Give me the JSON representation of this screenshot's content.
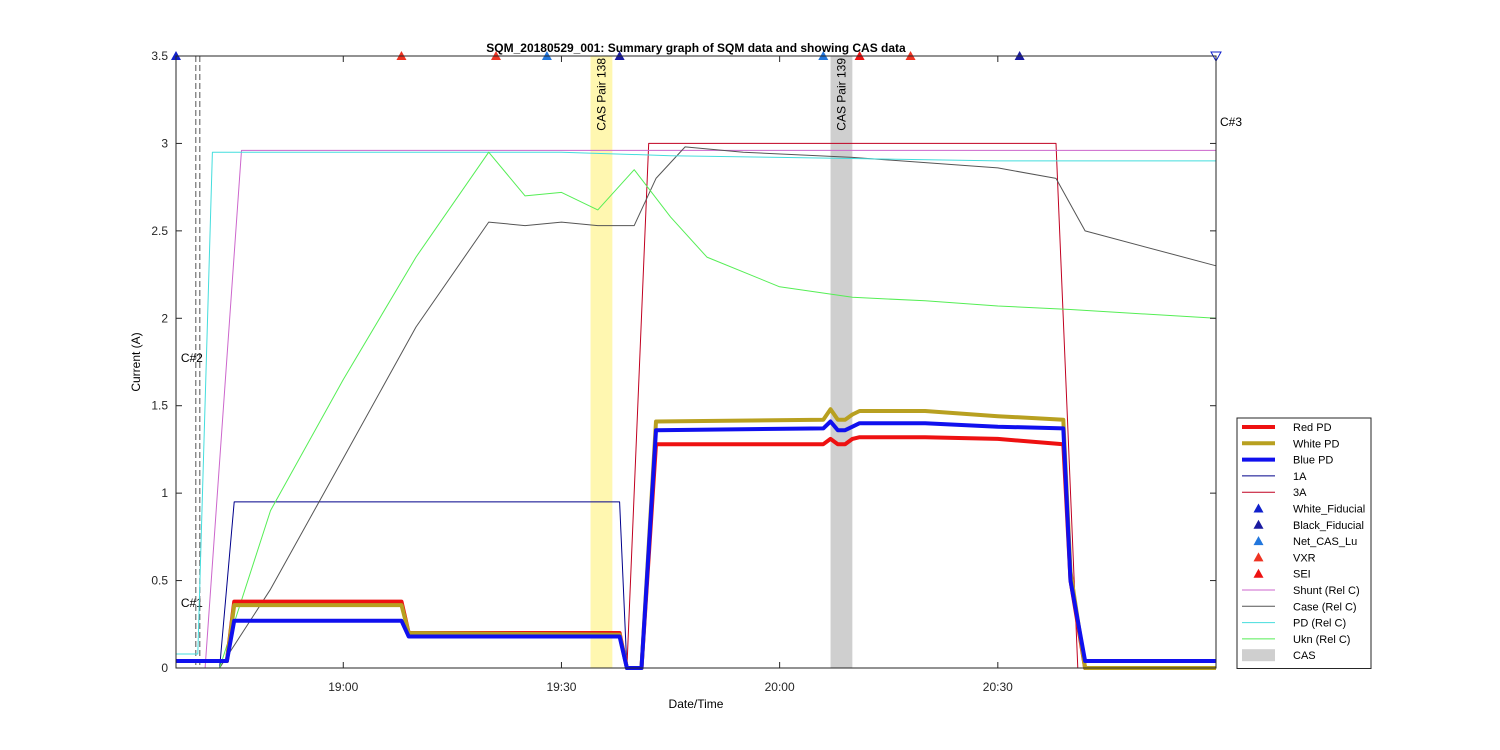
{
  "chart_data": {
    "type": "line",
    "title": "SQM_20180529_001: Summary graph of SQM data and showing CAS data",
    "xlabel": "Date/Time",
    "ylabel": "Current (A)",
    "xlim": [
      "18:37",
      "21:00"
    ],
    "ylim": [
      0,
      3.5
    ],
    "x_ticks": [
      "19:00",
      "19:30",
      "20:00",
      "20:30"
    ],
    "y_ticks": [
      "0",
      "0.5",
      "1",
      "1.5",
      "2",
      "2.5",
      "3",
      "3.5"
    ],
    "grid": false,
    "legend_position": "bottom-right",
    "cas_bands": [
      {
        "label": "CAS Pair 138",
        "start": "19:34",
        "end": "19:37",
        "color": "#fff7b0"
      },
      {
        "label": "CAS Pair 139",
        "start": "20:07",
        "end": "20:10",
        "color": "#cfcfcf"
      }
    ],
    "c_markers": [
      {
        "label": "C#1",
        "x": "18:40",
        "y": 0.35
      },
      {
        "label": "C#2",
        "x": "18:40",
        "y": 1.75
      },
      {
        "label": "C#3",
        "x": "21:00",
        "y": 3.1
      }
    ],
    "event_markers": [
      {
        "x": "18:37",
        "series": "White_Fiducial"
      },
      {
        "x": "19:08",
        "series": "VXR"
      },
      {
        "x": "19:21",
        "series": "VXR"
      },
      {
        "x": "19:28",
        "series": "Net_CAS_Lu"
      },
      {
        "x": "19:38",
        "series": "Black_Fiducial"
      },
      {
        "x": "20:06",
        "series": "Net_CAS_Lu"
      },
      {
        "x": "20:11",
        "series": "SEI"
      },
      {
        "x": "20:18",
        "series": "VXR"
      },
      {
        "x": "20:33",
        "series": "Black_Fiducial"
      },
      {
        "x": "21:00",
        "series": "White_Fiducial",
        "open_down": true
      }
    ],
    "series": [
      {
        "name": "Red PD",
        "color": "#ee1111",
        "width": 4,
        "x": [
          "18:37",
          "18:44",
          "18:45",
          "19:08",
          "19:09",
          "19:38",
          "19:39",
          "19:41",
          "19:43",
          "20:06",
          "20:07",
          "20:08",
          "20:09",
          "20:10",
          "20:11",
          "20:20",
          "20:30",
          "20:39",
          "20:40",
          "20:42",
          "21:00"
        ],
        "y": [
          0.04,
          0.04,
          0.38,
          0.38,
          0.2,
          0.2,
          0.0,
          0.0,
          1.28,
          1.28,
          1.31,
          1.28,
          1.28,
          1.31,
          1.32,
          1.32,
          1.31,
          1.28,
          0.5,
          0.0,
          0.0
        ]
      },
      {
        "name": "White PD",
        "color": "#b8a020",
        "width": 4,
        "x": [
          "18:37",
          "18:44",
          "18:45",
          "19:08",
          "19:09",
          "19:38",
          "19:39",
          "19:41",
          "19:43",
          "20:06",
          "20:07",
          "20:08",
          "20:09",
          "20:10",
          "20:11",
          "20:20",
          "20:30",
          "20:39",
          "20:40",
          "20:42",
          "21:00"
        ],
        "y": [
          0.04,
          0.04,
          0.36,
          0.36,
          0.2,
          0.19,
          0.0,
          0.0,
          1.41,
          1.42,
          1.48,
          1.42,
          1.42,
          1.45,
          1.47,
          1.47,
          1.44,
          1.42,
          0.55,
          0.0,
          0.0
        ]
      },
      {
        "name": "Blue PD",
        "color": "#1010ee",
        "width": 4,
        "x": [
          "18:37",
          "18:44",
          "18:45",
          "19:08",
          "19:09",
          "19:38",
          "19:39",
          "19:41",
          "19:43",
          "20:06",
          "20:07",
          "20:08",
          "20:09",
          "20:10",
          "20:11",
          "20:20",
          "20:30",
          "20:39",
          "20:40",
          "20:42",
          "21:00"
        ],
        "y": [
          0.04,
          0.04,
          0.27,
          0.27,
          0.18,
          0.18,
          0.0,
          0.0,
          1.36,
          1.37,
          1.41,
          1.36,
          1.36,
          1.38,
          1.4,
          1.4,
          1.38,
          1.37,
          0.5,
          0.04,
          0.04
        ]
      },
      {
        "name": "1A",
        "color": "#00008b",
        "width": 1,
        "x": [
          "18:37",
          "18:43",
          "18:45",
          "19:38",
          "19:39",
          "21:00"
        ],
        "y": [
          0.0,
          0.0,
          0.95,
          0.95,
          0.0,
          0.0
        ]
      },
      {
        "name": "3A",
        "color": "#c00020",
        "width": 1,
        "x": [
          "18:37",
          "19:39",
          "19:42",
          "20:38",
          "20:41",
          "21:00"
        ],
        "y": [
          0.0,
          0.0,
          3.0,
          3.0,
          0.0,
          0.0
        ]
      },
      {
        "name": "Shunt (Rel C)",
        "color": "#cc66cc",
        "width": 1,
        "x": [
          "18:37",
          "18:41",
          "18:46",
          "19:30",
          "20:00",
          "20:30",
          "21:00"
        ],
        "y": [
          0.0,
          0.0,
          2.96,
          2.96,
          2.96,
          2.96,
          2.96
        ]
      },
      {
        "name": "Case (Rel C)",
        "color": "#555555",
        "width": 1,
        "x": [
          "18:37",
          "18:43",
          "18:50",
          "19:00",
          "19:10",
          "19:20",
          "19:25",
          "19:30",
          "19:35",
          "19:40",
          "19:43",
          "19:47",
          "19:55",
          "20:10",
          "20:30",
          "20:38",
          "20:42",
          "21:00"
        ],
        "y": [
          0.0,
          0.0,
          0.45,
          1.2,
          1.95,
          2.55,
          2.53,
          2.55,
          2.53,
          2.53,
          2.8,
          2.98,
          2.95,
          2.92,
          2.86,
          2.8,
          2.5,
          2.3
        ]
      },
      {
        "name": "PD (Rel C)",
        "color": "#44dddd",
        "width": 1,
        "x": [
          "18:37",
          "18:40",
          "18:42",
          "19:00",
          "19:30",
          "19:45",
          "20:00",
          "20:30",
          "21:00"
        ],
        "y": [
          0.08,
          0.08,
          2.95,
          2.95,
          2.95,
          2.93,
          2.92,
          2.9,
          2.9
        ]
      },
      {
        "name": "Ukn (Rel C)",
        "color": "#55ee55",
        "width": 1,
        "x": [
          "18:37",
          "18:43",
          "18:50",
          "19:00",
          "19:10",
          "19:20",
          "19:25",
          "19:30",
          "19:35",
          "19:40",
          "19:45",
          "19:50",
          "20:00",
          "20:10",
          "20:20",
          "20:30",
          "20:40",
          "21:00"
        ],
        "y": [
          0.0,
          0.0,
          0.9,
          1.65,
          2.35,
          2.95,
          2.7,
          2.72,
          2.62,
          2.85,
          2.58,
          2.35,
          2.18,
          2.12,
          2.1,
          2.07,
          2.05,
          2.0
        ]
      }
    ],
    "legend": [
      {
        "name": "Red PD",
        "kind": "line",
        "color": "#ee1111",
        "width": 4
      },
      {
        "name": "White PD",
        "kind": "line",
        "color": "#b8a020",
        "width": 4
      },
      {
        "name": "Blue PD",
        "kind": "line",
        "color": "#1010ee",
        "width": 4
      },
      {
        "name": "1A",
        "kind": "line",
        "color": "#00008b",
        "width": 1
      },
      {
        "name": "3A",
        "kind": "line",
        "color": "#c00020",
        "width": 1
      },
      {
        "name": "White_Fiducial",
        "kind": "marker",
        "color": "#1020cc"
      },
      {
        "name": "Black_Fiducial",
        "kind": "marker",
        "color": "#1a1aa0"
      },
      {
        "name": "Net_CAS_Lu",
        "kind": "marker",
        "color": "#2277dd"
      },
      {
        "name": "VXR",
        "kind": "marker",
        "color": "#ee3322"
      },
      {
        "name": "SEI",
        "kind": "marker",
        "color": "#ee1111"
      },
      {
        "name": "Shunt (Rel C)",
        "kind": "line",
        "color": "#cc66cc",
        "width": 1
      },
      {
        "name": "Case (Rel C)",
        "kind": "line",
        "color": "#555555",
        "width": 1
      },
      {
        "name": "PD (Rel C)",
        "kind": "line",
        "color": "#44dddd",
        "width": 1
      },
      {
        "name": "Ukn (Rel C)",
        "kind": "line",
        "color": "#55ee55",
        "width": 1
      },
      {
        "name": "CAS",
        "kind": "patch",
        "color": "#cfcfcf"
      }
    ]
  }
}
